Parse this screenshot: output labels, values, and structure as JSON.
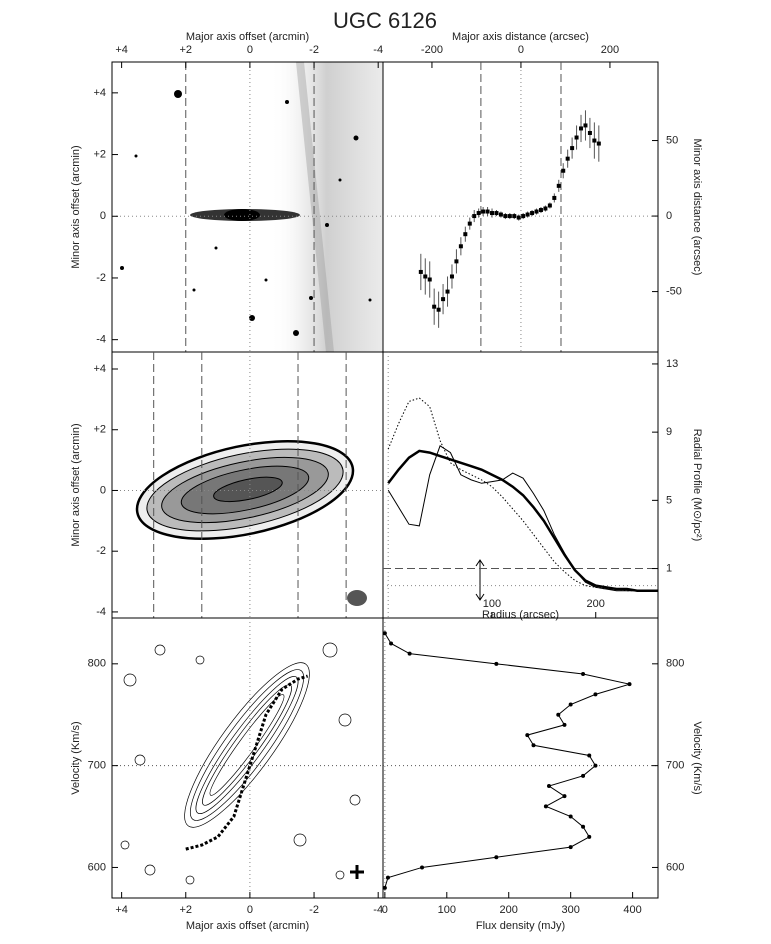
{
  "title": "UGC 6126",
  "chart_data": [
    {
      "type": "image",
      "xlabel": "Major axis offset (arcmin)",
      "ylabel": "Minor axis offset (arcmin)",
      "x_axis": "top",
      "y_axis": "left",
      "xlim": [
        4.3,
        -4.15
      ],
      "xticks": [
        {
          "value": 4,
          "label": "+4"
        },
        {
          "value": 2,
          "label": "+2"
        },
        0,
        -2,
        -4
      ],
      "ylim": [
        -4.4,
        5.0
      ],
      "yticks": [
        {
          "value": 4,
          "label": "+4"
        },
        {
          "value": 2,
          "label": "+2"
        },
        0,
        -2,
        -4
      ],
      "vlines": [
        2,
        -2
      ]
    },
    {
      "type": "scatter",
      "xlabel": "Major axis distance (arcsec)",
      "ylabel": "Minor axis distance (arcsec)",
      "x_axis": "top",
      "y_axis": "right",
      "xlim": [
        -310,
        308
      ],
      "xticks": [
        -200,
        0,
        200
      ],
      "ylim": [
        -90,
        102
      ],
      "yticks": [
        50,
        0,
        -50
      ],
      "vlines": [
        -90,
        90
      ],
      "x": [
        -225,
        -215,
        -205,
        -195,
        -185,
        -175,
        -165,
        -155,
        -145,
        -135,
        -125,
        -115,
        -105,
        -95,
        -85,
        -75,
        -65,
        -55,
        -45,
        -35,
        -25,
        -15,
        -5,
        5,
        15,
        25,
        35,
        45,
        55,
        65,
        75,
        85,
        95,
        105,
        115,
        125,
        135,
        145,
        155,
        165,
        175
      ],
      "values": [
        -37,
        -40,
        -42,
        -60,
        -62,
        -55,
        -50,
        -40,
        -30,
        -20,
        -12,
        -5,
        0,
        2,
        3,
        3,
        2,
        2,
        1,
        0,
        0,
        0,
        -1,
        0,
        1,
        2,
        3,
        4,
        5,
        7,
        12,
        20,
        30,
        38,
        45,
        52,
        58,
        60,
        55,
        50,
        48
      ],
      "errors": [
        12,
        12,
        12,
        12,
        12,
        10,
        10,
        8,
        8,
        6,
        5,
        4,
        4,
        3,
        3,
        3,
        3,
        2,
        2,
        2,
        2,
        2,
        2,
        2,
        2,
        2,
        2,
        2,
        2,
        2,
        3,
        4,
        5,
        6,
        7,
        8,
        9,
        10,
        10,
        12,
        12
      ],
      "color": "#000000"
    },
    {
      "type": "contour",
      "ylabel": "Minor axis offset (arcmin)",
      "x_axis": "none",
      "y_axis": "left",
      "xlim": [
        4.3,
        -4.15
      ],
      "ylim": [
        -4.2,
        4.56
      ],
      "yticks": [
        {
          "value": 4,
          "label": "+4"
        },
        {
          "value": 2,
          "label": "+2"
        },
        0,
        -2,
        -4
      ],
      "vlines": [
        3,
        1.5,
        -1.5,
        -3
      ]
    },
    {
      "type": "line",
      "xlabel": "Radius (arcsec)",
      "ylabel": "Radial Profile (M⊙/pc²)",
      "x_axis": "bottom",
      "y_axis": "right",
      "xlim": [
        -5,
        260
      ],
      "xticks": [
        100,
        200
      ],
      "ylim": [
        -1.9,
        13.7
      ],
      "yticks": [
        13,
        9,
        5,
        1
      ],
      "hlines": [
        1
      ],
      "x": [
        0,
        10,
        20,
        30,
        40,
        50,
        60,
        70,
        80,
        90,
        100,
        110,
        120,
        130,
        140,
        150,
        160,
        170,
        180,
        190,
        200,
        210,
        220,
        230,
        240,
        250,
        260
      ],
      "series": [
        {
          "style": "thick",
          "color": "#000000",
          "values": [
            6.0,
            6.8,
            7.5,
            7.9,
            7.8,
            7.6,
            7.4,
            7.2,
            7.0,
            6.8,
            6.5,
            6.2,
            5.8,
            5.3,
            4.6,
            3.8,
            2.8,
            1.8,
            0.9,
            0.3,
            0.0,
            -0.1,
            -0.2,
            -0.2,
            -0.3,
            -0.3,
            -0.3
          ]
        },
        {
          "style": "thin",
          "color": "#000000",
          "values": [
            5.6,
            4.6,
            3.6,
            3.5,
            6.5,
            8.2,
            7.8,
            6.5,
            6.2,
            6.0,
            6.1,
            6.2,
            6.6,
            6.3,
            5.4,
            4.4,
            3.0,
            1.9,
            0.9,
            0.2,
            -0.1,
            -0.2,
            -0.3,
            -0.3,
            -0.3,
            -0.3,
            -0.3
          ]
        },
        {
          "style": "dotted",
          "color": "#000000",
          "values": [
            8.0,
            9.5,
            10.8,
            11.0,
            10.5,
            8.5,
            7.2,
            6.8,
            6.5,
            6.2,
            5.8,
            5.2,
            4.5,
            3.8,
            3.0,
            2.2,
            1.4,
            0.8,
            0.3,
            0.0,
            -0.1,
            -0.2,
            -0.2,
            -0.3,
            -0.3,
            -0.3,
            -0.3
          ]
        }
      ]
    },
    {
      "type": "contour",
      "xlabel": "Major axis offset (arcmin)",
      "ylabel": "Velocity (Km/s)",
      "x_axis": "bottom",
      "y_axis": "left",
      "xlim": [
        4.3,
        -4.15
      ],
      "xticks": [
        {
          "value": 4,
          "label": "+4"
        },
        {
          "value": 2,
          "label": "+2"
        },
        0,
        -2,
        -4
      ],
      "ylim": [
        570,
        845
      ],
      "yticks": [
        600,
        700,
        800
      ],
      "hlines": [
        700
      ],
      "x": [
        2.0,
        1.5,
        1.0,
        0.5,
        0.2,
        0,
        -0.2,
        -0.5,
        -1.0,
        -1.5,
        -1.8
      ],
      "values": [
        618,
        622,
        630,
        650,
        680,
        700,
        720,
        750,
        775,
        785,
        788
      ]
    },
    {
      "type": "profile",
      "xlabel": "Flux density (mJy)",
      "ylabel": "Velocity (Km/s)",
      "x_axis": "bottom",
      "y_axis": "right",
      "xlim": [
        -3,
        441
      ],
      "xticks": [
        0,
        100,
        200,
        300,
        400
      ],
      "ylim": [
        570,
        845
      ],
      "yticks": [
        600,
        700,
        800
      ],
      "hlines": [
        700
      ],
      "y": [
        580,
        590,
        600,
        610,
        620,
        630,
        640,
        650,
        660,
        670,
        680,
        690,
        700,
        710,
        720,
        730,
        740,
        750,
        760,
        770,
        780,
        790,
        800,
        810,
        820,
        830
      ],
      "values": [
        0,
        5,
        60,
        180,
        300,
        330,
        320,
        300,
        260,
        290,
        265,
        320,
        340,
        330,
        240,
        230,
        290,
        280,
        300,
        340,
        395,
        320,
        180,
        40,
        10,
        0
      ]
    }
  ]
}
